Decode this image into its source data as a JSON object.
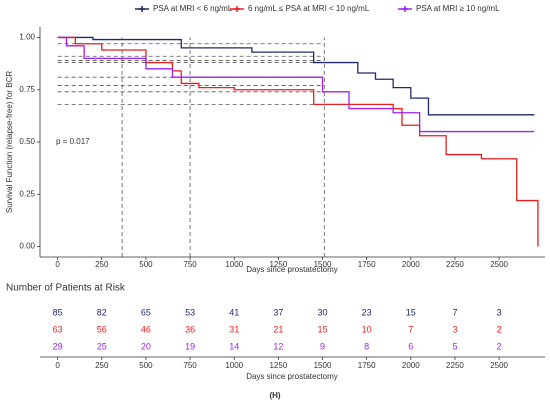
{
  "chart_data": {
    "type": "step",
    "x_label": "Days since prostatectomy",
    "y_label": "Survival Function (relapse-free) for BCR",
    "annotation": "p = 0.017",
    "caption": "(H)",
    "xlim": [
      -100,
      2760
    ],
    "ylim": [
      -0.05,
      1.05
    ],
    "xticks": [
      0,
      250,
      500,
      750,
      1000,
      1250,
      1500,
      1750,
      2000,
      2250,
      2500
    ],
    "yticks": [
      {
        "value": 0,
        "label": "0.00"
      },
      {
        "value": 0.25,
        "label": "0.25"
      },
      {
        "value": 0.5,
        "label": "0.50"
      },
      {
        "value": 0.75,
        "label": "0.75"
      },
      {
        "value": 1,
        "label": "1.00"
      }
    ],
    "reference_x": [
      365,
      750,
      1510
    ],
    "reference_y": [
      0.97,
      0.91,
      0.89,
      0.88,
      0.81,
      0.77,
      0.74,
      0.68
    ],
    "series": [
      {
        "name": "PSA at MRI < 6 ng/mL",
        "color": "#1f2a6b",
        "x": [
          0,
          200,
          700,
          1100,
          1450,
          1700,
          1800,
          1900,
          2000,
          2100,
          2700
        ],
        "values": [
          1.0,
          0.99,
          0.95,
          0.93,
          0.88,
          0.83,
          0.8,
          0.76,
          0.71,
          0.63,
          0.63
        ],
        "at_risk": [
          85,
          82,
          65,
          53,
          41,
          37,
          30,
          23,
          15,
          7,
          3
        ]
      },
      {
        "name": "6 ng/mL ≤ PSA at MRI < 10 ng/mL",
        "color": "#ee1c1c",
        "x": [
          0,
          100,
          250,
          500,
          650,
          700,
          800,
          1000,
          1450,
          1900,
          1950,
          2050,
          2200,
          2400,
          2600,
          2720
        ],
        "values": [
          1.0,
          0.97,
          0.94,
          0.88,
          0.84,
          0.78,
          0.76,
          0.75,
          0.68,
          0.66,
          0.58,
          0.53,
          0.44,
          0.42,
          0.22,
          0.0
        ],
        "at_risk": [
          63,
          56,
          46,
          36,
          31,
          21,
          15,
          10,
          7,
          3,
          2
        ]
      },
      {
        "name": "PSA at MRI ≥ 10 ng/mL",
        "color": "#a020f0",
        "x": [
          0,
          50,
          150,
          500,
          650,
          1500,
          1650,
          1900,
          2050,
          2700
        ],
        "values": [
          1.0,
          0.96,
          0.9,
          0.85,
          0.81,
          0.74,
          0.66,
          0.64,
          0.55,
          0.55
        ],
        "at_risk": [
          29,
          25,
          20,
          19,
          14,
          12,
          9,
          8,
          6,
          5,
          2
        ]
      }
    ],
    "risk_table_title": "Number of Patients at Risk"
  }
}
